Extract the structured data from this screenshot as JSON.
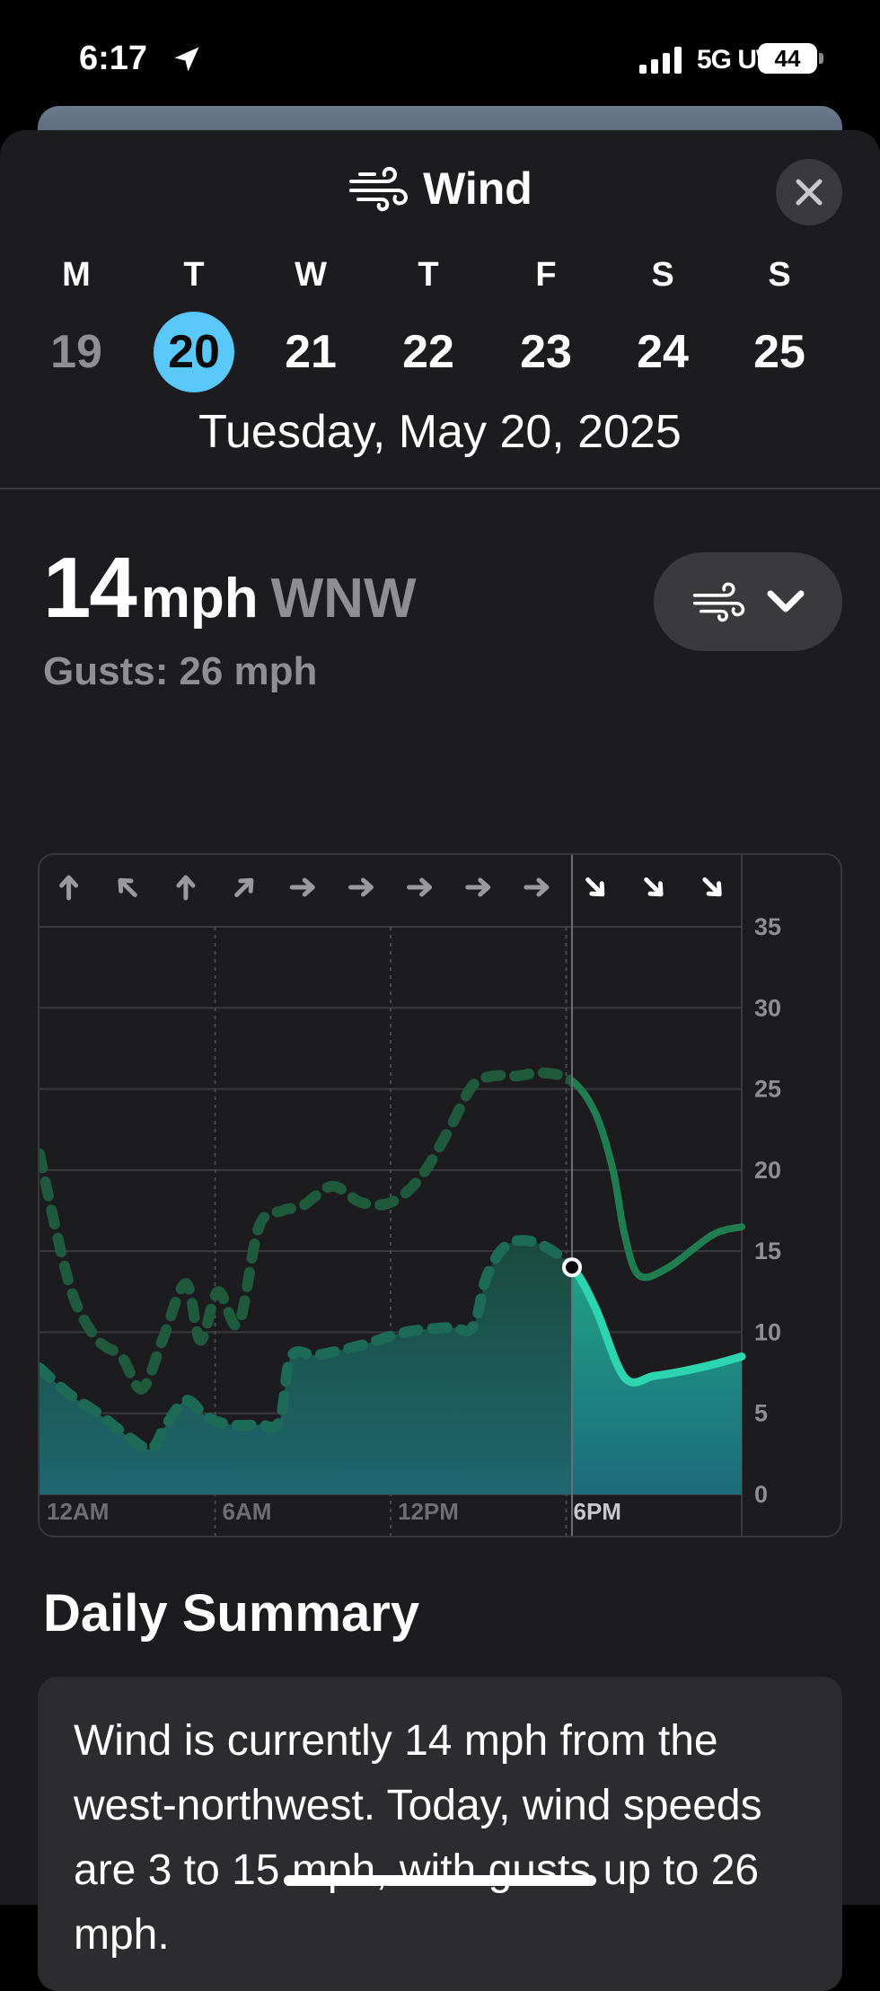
{
  "status_bar": {
    "time": "6:17",
    "network": "5G UW",
    "battery": "44"
  },
  "header": {
    "title": "Wind",
    "icon": "wind-icon",
    "close_icon": "close-icon"
  },
  "days": [
    {
      "letter": "M",
      "number": "19",
      "state": "past"
    },
    {
      "letter": "T",
      "number": "20",
      "state": "selected"
    },
    {
      "letter": "W",
      "number": "21",
      "state": "future"
    },
    {
      "letter": "T",
      "number": "22",
      "state": "future"
    },
    {
      "letter": "F",
      "number": "23",
      "state": "future"
    },
    {
      "letter": "S",
      "number": "24",
      "state": "future"
    },
    {
      "letter": "S",
      "number": "25",
      "state": "future"
    }
  ],
  "selected_date": "Tuesday, May 20, 2025",
  "current": {
    "speed": "14",
    "unit": "mph",
    "direction": "WNW",
    "gusts_label": "Gusts:",
    "gusts_value": "26 mph"
  },
  "view_menu": {
    "icon": "wind-icon",
    "chevron": "chevron-down-icon"
  },
  "chart_data": {
    "type": "line",
    "x_tick_labels": [
      "12AM",
      "6AM",
      "12PM",
      "6PM"
    ],
    "y_tick_labels": [
      "35",
      "30",
      "25",
      "20",
      "15",
      "10",
      "5",
      "0"
    ],
    "ylim": [
      0,
      35
    ],
    "xlim": [
      0,
      24
    ],
    "current_hour": 18.2,
    "direction_arrows": [
      {
        "hour": 1,
        "deg": 0
      },
      {
        "hour": 3,
        "deg": -45
      },
      {
        "hour": 5,
        "deg": 0
      },
      {
        "hour": 7,
        "deg": 45
      },
      {
        "hour": 9,
        "deg": 90
      },
      {
        "hour": 11,
        "deg": 90
      },
      {
        "hour": 13,
        "deg": 90
      },
      {
        "hour": 15,
        "deg": 90
      },
      {
        "hour": 17,
        "deg": 90
      },
      {
        "hour": 19,
        "deg": 135
      },
      {
        "hour": 21,
        "deg": 135
      },
      {
        "hour": 23,
        "deg": 135
      }
    ],
    "series": [
      {
        "name": "Wind",
        "color": "#2dd4b0",
        "x": [
          0,
          1,
          2,
          3,
          3.8,
          4.3,
          5,
          5.7,
          6.5,
          7.5,
          8.2,
          8.6,
          9.5,
          11,
          12.5,
          14,
          14.8,
          15.3,
          16,
          17,
          18.2,
          19,
          20,
          21,
          22,
          23,
          24
        ],
        "y": [
          7.8,
          6.2,
          5,
          3.6,
          2.8,
          4.2,
          5.8,
          4.8,
          4.3,
          4.3,
          4.5,
          8.5,
          8.6,
          9.2,
          10,
          10.3,
          10.3,
          13.5,
          15.4,
          15.5,
          14,
          11.5,
          7.2,
          7.3,
          7.6,
          8,
          8.5
        ]
      },
      {
        "name": "Gusts",
        "color": "#1f7d4f",
        "x": [
          0,
          0.6,
          1.2,
          2,
          2.8,
          3.5,
          4.2,
          5,
          5.5,
          6.1,
          6.8,
          7.5,
          8.3,
          9,
          10,
          11,
          12,
          13,
          14,
          14.8,
          15.5,
          16.3,
          17.2,
          18.2,
          19,
          19.6,
          20,
          20.5,
          21.5,
          23,
          24
        ],
        "y": [
          21,
          16,
          12,
          9.5,
          8.5,
          6.5,
          9.5,
          13,
          9.5,
          12.5,
          10.5,
          16.5,
          17.5,
          17.8,
          19,
          18,
          18,
          19.5,
          22.5,
          25.2,
          25.8,
          25.8,
          26,
          25.5,
          23.5,
          20,
          16,
          13.5,
          14,
          16,
          16.5
        ]
      }
    ]
  },
  "summary": {
    "title": "Daily Summary",
    "text": "Wind is currently 14 mph from the west-northwest. Today, wind speeds are 3 to 15 mph, with gusts up to 26 mph."
  }
}
